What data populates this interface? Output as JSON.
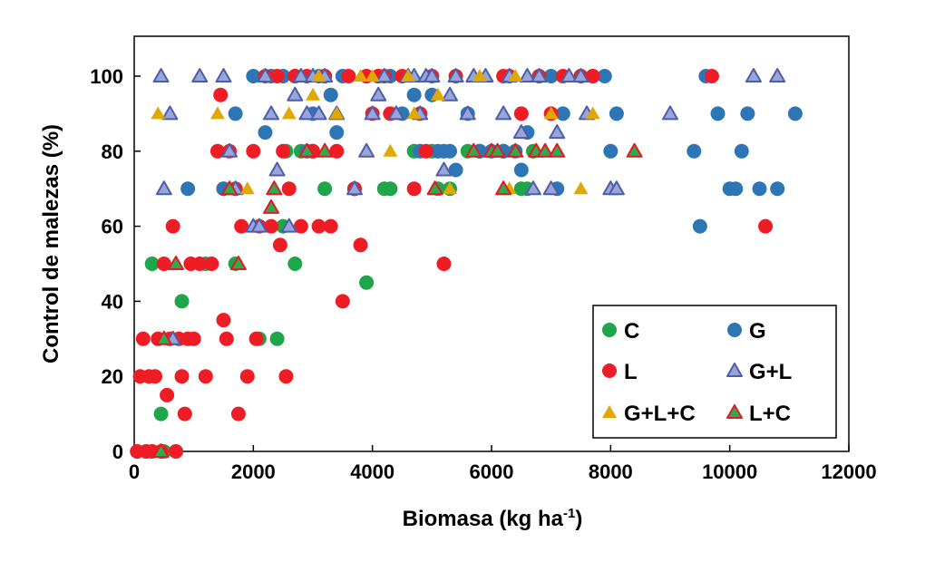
{
  "chart_data": {
    "type": "scatter",
    "title": "",
    "xlabel_main": "Biomasa (kg ha",
    "xlabel_sup": "-1",
    "xlabel_close": ")",
    "ylabel": "Control de malezas (%)",
    "xlim": [
      0,
      12000
    ],
    "ylim": [
      0,
      110
    ],
    "xticks": [
      0,
      2000,
      4000,
      6000,
      8000,
      10000,
      12000
    ],
    "yticks": [
      0,
      20,
      40,
      60,
      80,
      100
    ],
    "grid": false,
    "legend_position": "bottom-right",
    "series": [
      {
        "name": "C",
        "marker": "circle",
        "fill": "#1fa64a",
        "stroke": "none",
        "x": [
          50,
          200,
          300,
          450,
          500,
          700,
          800,
          1200,
          1500,
          1700,
          2100,
          2400,
          2500,
          2550,
          2700,
          2800,
          3000,
          3200,
          3700,
          3900,
          4200,
          4300,
          4700,
          5000,
          5100,
          5300,
          5600,
          5800,
          6200,
          6500,
          6600,
          6700
        ],
        "y": [
          0,
          0,
          50,
          10,
          0,
          0,
          40,
          50,
          70,
          50,
          30,
          30,
          60,
          80,
          50,
          80,
          80,
          70,
          70,
          45,
          70,
          70,
          80,
          80,
          70,
          70,
          80,
          80,
          80,
          70,
          70,
          80
        ]
      },
      {
        "name": "G",
        "marker": "circle",
        "fill": "#2e75b6",
        "stroke": "none",
        "x": [
          900,
          1500,
          1700,
          2000,
          2200,
          2300,
          2500,
          2700,
          2900,
          3000,
          3100,
          3200,
          3300,
          3400,
          3500,
          3700,
          3900,
          4100,
          4300,
          4500,
          4700,
          4800,
          5000,
          5100,
          5200,
          5300,
          5400,
          5600,
          5800,
          6000,
          6200,
          6400,
          6500,
          6600,
          6800,
          7000,
          7100,
          7200,
          7500,
          7700,
          7900,
          8000,
          8100,
          9400,
          9500,
          9600,
          9800,
          10000,
          10100,
          10200,
          10300,
          10500,
          10800,
          11100
        ],
        "y": [
          70,
          70,
          90,
          100,
          85,
          100,
          100,
          100,
          80,
          90,
          100,
          100,
          95,
          85,
          100,
          70,
          100,
          100,
          100,
          90,
          95,
          80,
          95,
          80,
          80,
          80,
          75,
          90,
          80,
          80,
          80,
          80,
          75,
          85,
          100,
          100,
          70,
          90,
          100,
          100,
          100,
          80,
          90,
          80,
          60,
          100,
          90,
          70,
          70,
          80,
          90,
          70,
          70,
          90
        ]
      },
      {
        "name": "L",
        "marker": "circle",
        "fill": "#ee1c25",
        "stroke": "none",
        "x": [
          50,
          100,
          150,
          200,
          250,
          300,
          350,
          400,
          450,
          500,
          550,
          600,
          650,
          700,
          750,
          800,
          850,
          900,
          950,
          1000,
          1100,
          1200,
          1300,
          1400,
          1450,
          1500,
          1550,
          1600,
          1700,
          1750,
          1800,
          1900,
          2000,
          2050,
          2100,
          2200,
          2300,
          2400,
          2450,
          2500,
          2550,
          2600,
          2700,
          2800,
          2900,
          3000,
          3100,
          3200,
          3300,
          3400,
          3500,
          3600,
          3700,
          3800,
          3900,
          4000,
          4100,
          4200,
          4300,
          4500,
          4700,
          4800,
          4900,
          5000,
          5200,
          5400,
          6200,
          6300,
          6500,
          6800,
          7000,
          7200,
          7500,
          7700,
          9700,
          10600
        ],
        "y": [
          0,
          20,
          30,
          0,
          20,
          0,
          20,
          30,
          0,
          50,
          15,
          30,
          60,
          0,
          30,
          20,
          10,
          30,
          50,
          30,
          50,
          20,
          50,
          80,
          95,
          35,
          30,
          80,
          70,
          10,
          60,
          20,
          80,
          30,
          60,
          100,
          60,
          100,
          55,
          80,
          20,
          70,
          100,
          60,
          100,
          80,
          60,
          100,
          60,
          80,
          40,
          100,
          70,
          55,
          100,
          90,
          100,
          100,
          90,
          100,
          70,
          90,
          80,
          100,
          50,
          100,
          100,
          100,
          90,
          100,
          90,
          100,
          100,
          100,
          100,
          60
        ]
      },
      {
        "name": "G+L",
        "marker": "triangle",
        "fill": "#9aa4d8",
        "stroke": "#4b5fa9",
        "x": [
          450,
          500,
          600,
          650,
          1100,
          1500,
          1600,
          1700,
          2000,
          2100,
          2200,
          2300,
          2400,
          2600,
          2700,
          2800,
          2900,
          3000,
          3100,
          3200,
          3400,
          3700,
          3900,
          4000,
          4100,
          4200,
          4400,
          4600,
          4700,
          4800,
          4900,
          5000,
          5200,
          5300,
          5400,
          5600,
          5700,
          5900,
          6000,
          6200,
          6300,
          6500,
          6600,
          6700,
          6800,
          7000,
          7100,
          7300,
          7500,
          7600,
          8000,
          8100,
          9000,
          10400,
          10800
        ],
        "y": [
          100,
          70,
          90,
          30,
          100,
          100,
          80,
          70,
          60,
          60,
          100,
          90,
          75,
          60,
          95,
          100,
          90,
          100,
          90,
          100,
          90,
          70,
          80,
          90,
          95,
          100,
          90,
          100,
          100,
          90,
          100,
          100,
          75,
          95,
          100,
          90,
          100,
          100,
          80,
          90,
          100,
          85,
          100,
          70,
          100,
          70,
          85,
          100,
          100,
          90,
          70,
          70,
          90,
          100,
          100
        ]
      },
      {
        "name": "G+L+C",
        "marker": "triangle",
        "fill": "#e0a800",
        "stroke": "none",
        "x": [
          400,
          1400,
          1900,
          2600,
          3000,
          3100,
          3400,
          3800,
          4000,
          4300,
          4600,
          4700,
          5100,
          5300,
          5800,
          6300,
          6400,
          7000,
          7500,
          7700
        ],
        "y": [
          90,
          90,
          70,
          90,
          95,
          100,
          90,
          100,
          100,
          80,
          100,
          90,
          95,
          70,
          100,
          70,
          100,
          90,
          70,
          90
        ]
      },
      {
        "name": "L+C",
        "marker": "triangle",
        "fill": "#2eaa4f",
        "stroke": "#e31b23",
        "x": [
          450,
          500,
          700,
          1600,
          1750,
          2300,
          2350,
          2900,
          3200,
          5050,
          5700,
          6000,
          6100,
          6200,
          6400,
          6750,
          6900,
          7100,
          8400
        ],
        "y": [
          0,
          30,
          50,
          70,
          50,
          65,
          70,
          80,
          80,
          70,
          80,
          80,
          80,
          70,
          80,
          80,
          80,
          80,
          80
        ]
      }
    ]
  }
}
